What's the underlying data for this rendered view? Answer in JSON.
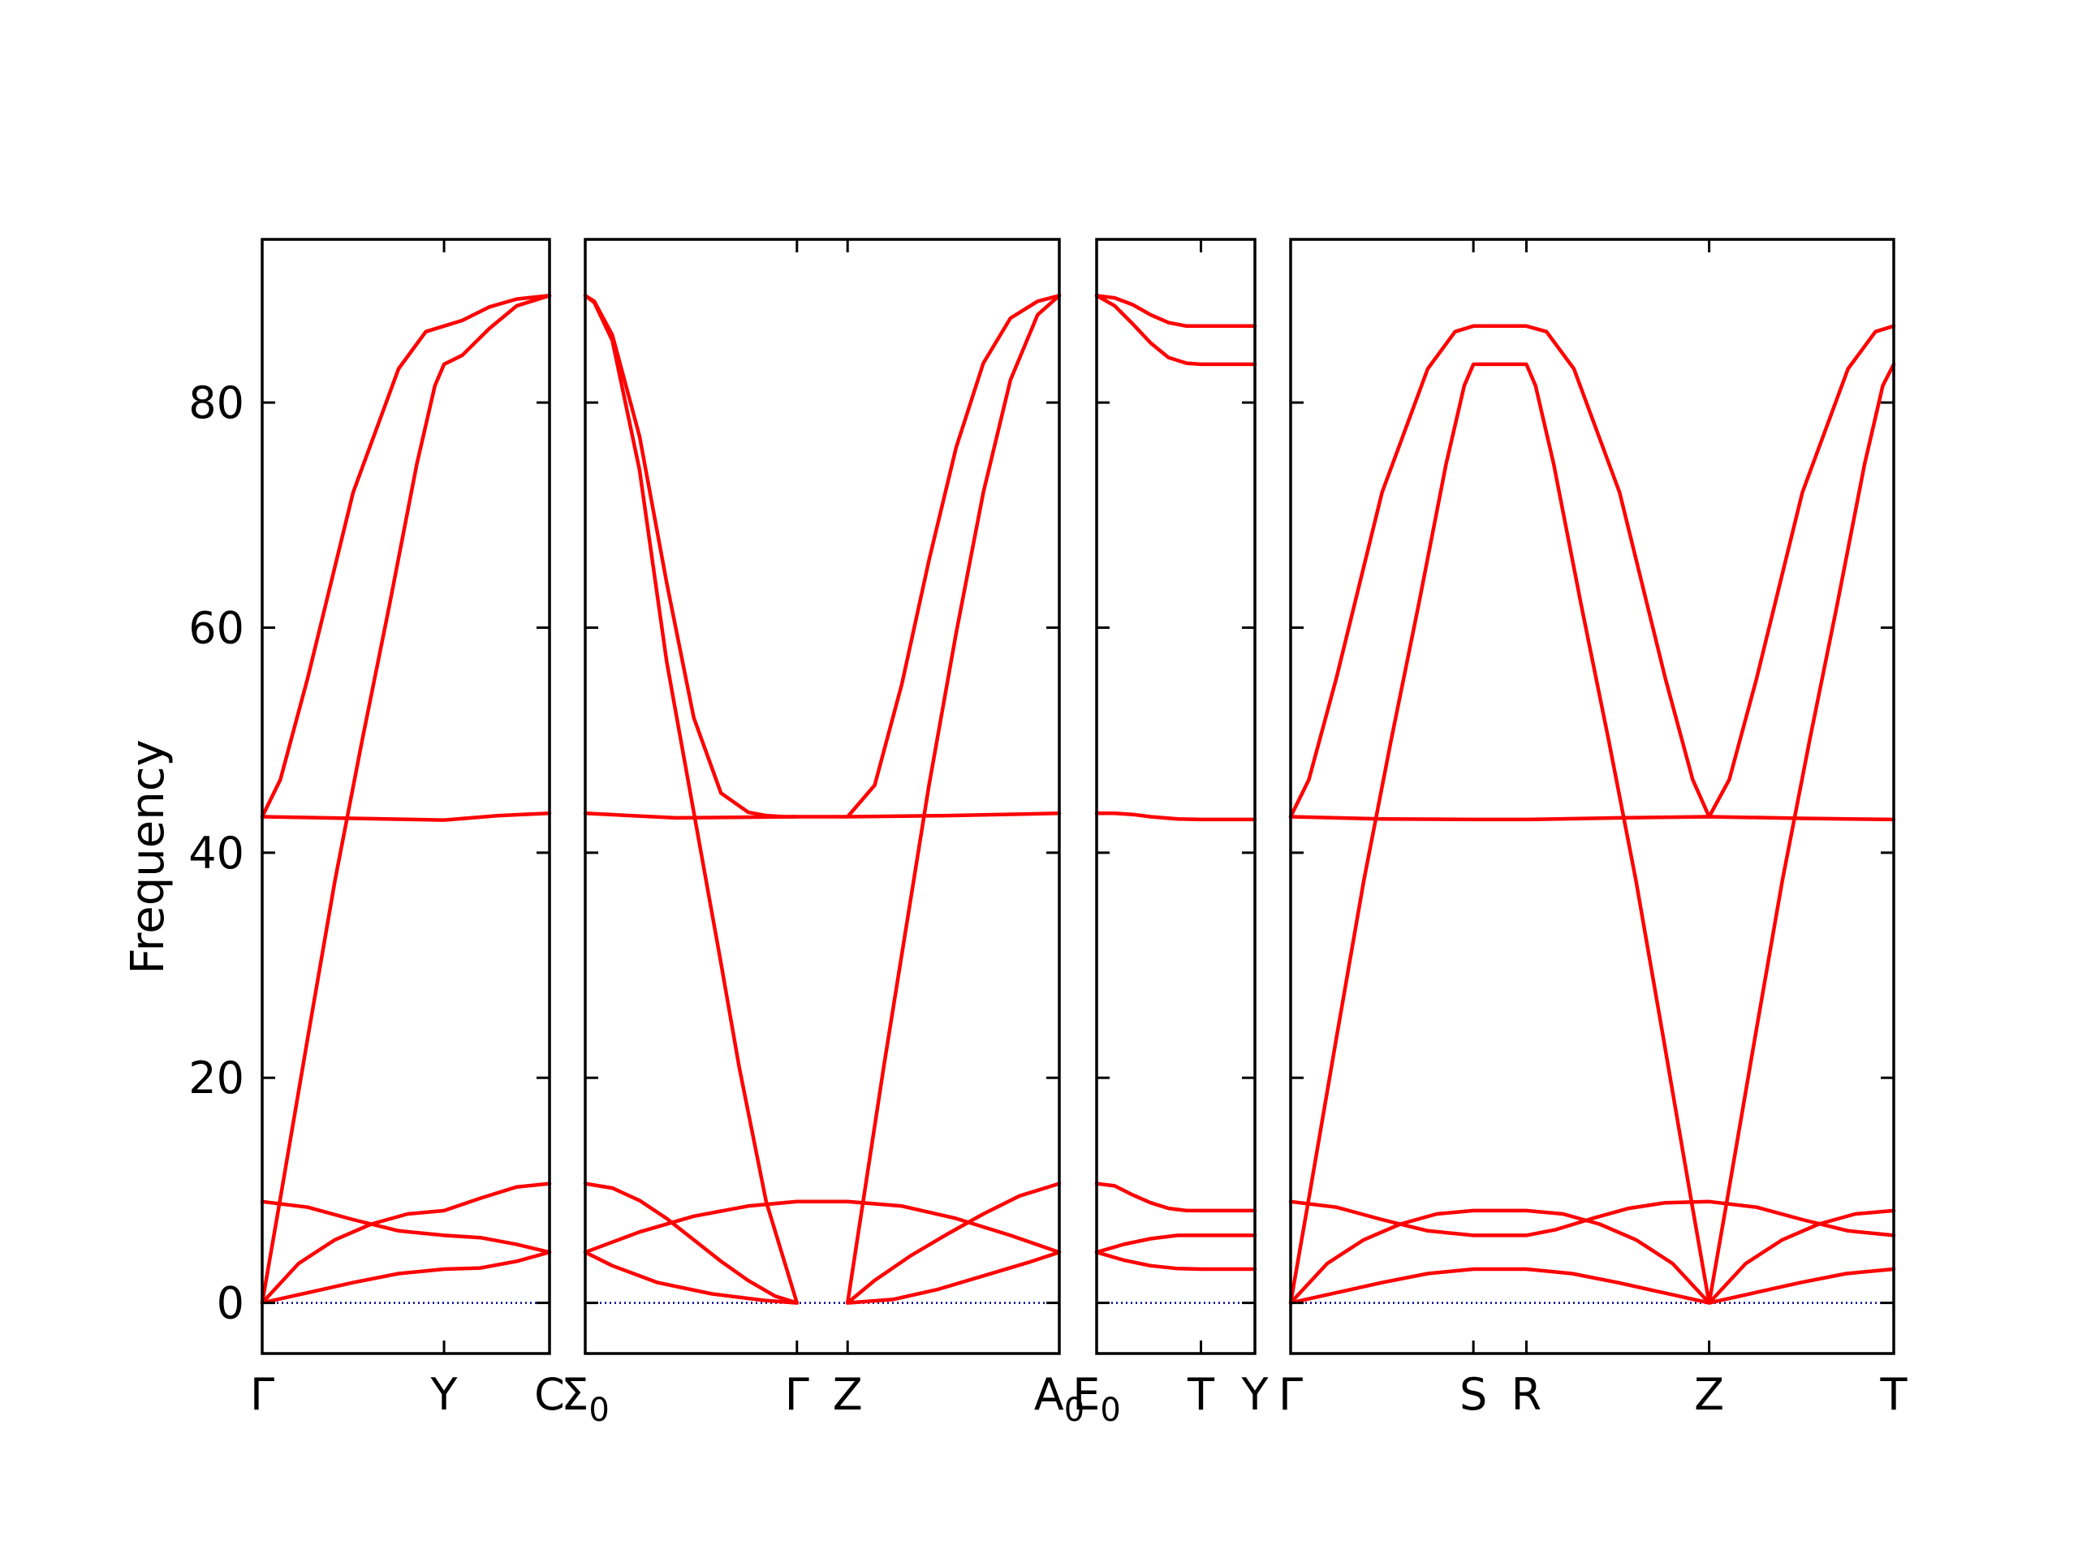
{
  "chart_data": {
    "type": "line",
    "ylabel": "Frequency",
    "ylim": [
      -4.5,
      94.5
    ],
    "yticks": [
      0,
      20,
      40,
      60,
      80
    ],
    "zero_line": true,
    "colors": {
      "bands": "#ff0000",
      "zero_line": "#00008b",
      "axes": "#000000"
    },
    "panels": [
      {
        "id": "p1",
        "xlim": [
          0,
          1.58
        ],
        "ticks": [
          {
            "x": 0,
            "label": "Γ"
          },
          {
            "x": 1.0,
            "label": "Y"
          },
          {
            "x": 1.58,
            "label": "C"
          }
        ],
        "bands": [
          {
            "name": "",
            "x": [
              0,
              0.1,
              0.25,
              0.5,
              0.75,
              0.9,
              1.0,
              1.1,
              1.25,
              1.4,
              1.58
            ],
            "y": [
              43.2,
              46.5,
              55.5,
              72,
              83,
              86.3,
              86.8,
              87.3,
              88.5,
              89.2,
              89.5
            ]
          },
          {
            "name": "",
            "x": [
              0,
              0.1,
              0.25,
              0.4,
              0.55,
              0.7,
              0.85,
              0.95,
              1.0,
              1.1,
              1.25,
              1.4,
              1.58
            ],
            "y": [
              0,
              9.3,
              23.5,
              37.5,
              50,
              62,
              74.5,
              81.5,
              83.4,
              84.2,
              86.6,
              88.6,
              89.5
            ]
          },
          {
            "name": "",
            "x": [
              0,
              0.5,
              1.0,
              1.3,
              1.58
            ],
            "y": [
              43.2,
              43.05,
              42.9,
              43.3,
              43.5
            ]
          },
          {
            "name": "",
            "x": [
              0,
              0.25,
              0.5,
              0.75,
              1.0,
              1.2,
              1.4,
              1.58
            ],
            "y": [
              9.0,
              8.5,
              7.4,
              6.4,
              6.0,
              5.8,
              5.2,
              4.5
            ]
          },
          {
            "name": "",
            "x": [
              0,
              0.2,
              0.4,
              0.6,
              0.8,
              1.0,
              1.2,
              1.4,
              1.58
            ],
            "y": [
              0,
              3.5,
              5.6,
              7.0,
              7.9,
              8.2,
              9.3,
              10.3,
              10.6
            ]
          },
          {
            "name": "",
            "x": [
              0,
              0.25,
              0.5,
              0.75,
              1.0,
              1.2,
              1.4,
              1.58
            ],
            "y": [
              0,
              0.9,
              1.8,
              2.6,
              3.0,
              3.1,
              3.7,
              4.5
            ]
          }
        ]
      },
      {
        "id": "p2",
        "xlim": [
          0,
          2.62
        ],
        "ticks": [
          {
            "x": 0,
            "label": "Σ",
            "sub": "0"
          },
          {
            "x": 1.17,
            "label": "Γ"
          },
          {
            "x": 1.45,
            "label": "Z"
          },
          {
            "x": 2.62,
            "label": "A",
            "sub": "0"
          }
        ],
        "bands": [
          {
            "name": "",
            "x": [
              0,
              0.05,
              0.15,
              0.3,
              0.45,
              0.6,
              0.75,
              0.9,
              1.0,
              1.1,
              1.17
            ],
            "y": [
              89.5,
              89.0,
              86,
              77,
              64,
              52,
              45.3,
              43.6,
              43.3,
              43.2,
              43.2
            ]
          },
          {
            "name": "",
            "x": [
              0,
              0.05,
              0.15,
              0.3,
              0.45,
              0.6,
              0.75,
              0.85,
              1.0,
              1.17
            ],
            "y": [
              89.5,
              88.9,
              85.5,
              74,
              57,
              43.6,
              30.2,
              21.0,
              9.0,
              0
            ]
          },
          {
            "name": "",
            "x": [
              0,
              0.5,
              1.17,
              1.45,
              2.0,
              2.62
            ],
            "y": [
              43.5,
              43.1,
              43.2,
              43.2,
              43.3,
              43.5
            ]
          },
          {
            "name": "",
            "x": [
              0,
              0.15,
              0.4,
              0.7,
              1.0,
              1.17
            ],
            "y": [
              4.5,
              3.3,
              1.8,
              0.8,
              0.2,
              0
            ]
          },
          {
            "name": "",
            "x": [
              0,
              0.15,
              0.3,
              0.45,
              0.6,
              0.75,
              0.9,
              1.05,
              1.17
            ],
            "y": [
              10.6,
              10.2,
              9.1,
              7.5,
              5.6,
              3.7,
              2.0,
              0.6,
              0
            ]
          },
          {
            "name": "",
            "x": [
              0,
              0.3,
              0.6,
              0.9,
              1.17,
              1.45,
              1.75,
              2.05,
              2.35,
              2.62
            ],
            "y": [
              4.5,
              6.3,
              7.7,
              8.6,
              9.0,
              9.0,
              8.6,
              7.5,
              6.0,
              4.5
            ]
          },
          {
            "name": "",
            "x": [
              1.45,
              1.6,
              1.75,
              1.9,
              2.05,
              2.2,
              2.35,
              2.5,
              2.62
            ],
            "y": [
              43.2,
              46,
              55,
              66,
              76,
              83.5,
              87.5,
              89.0,
              89.5
            ]
          },
          {
            "name": "",
            "x": [
              1.45,
              1.65,
              1.9,
              2.05,
              2.2,
              2.35,
              2.5,
              2.62
            ],
            "y": [
              0,
              21.0,
              46,
              59.5,
              72,
              82,
              87.8,
              89.5
            ]
          },
          {
            "name": "",
            "x": [
              1.45,
              1.6,
              1.8,
              2.0,
              2.2,
              2.4,
              2.62
            ],
            "y": [
              0,
              2.0,
              4.2,
              6.1,
              7.9,
              9.5,
              10.6
            ]
          },
          {
            "name": "",
            "x": [
              1.45,
              1.7,
              1.95,
              2.2,
              2.45,
              2.62
            ],
            "y": [
              0,
              0.3,
              1.2,
              2.4,
              3.6,
              4.5
            ]
          }
        ]
      },
      {
        "id": "p3",
        "xlim": [
          0,
          0.88
        ],
        "ticks": [
          {
            "x": 0,
            "label": "E",
            "sub": "0"
          },
          {
            "x": 0.58,
            "label": "T"
          },
          {
            "x": 0.88,
            "label": "Y"
          }
        ],
        "bands": [
          {
            "name": "",
            "x": [
              0,
              0.1,
              0.2,
              0.3,
              0.4,
              0.5,
              0.58,
              0.88
            ],
            "y": [
              89.5,
              89.3,
              88.7,
              87.8,
              87.1,
              86.8,
              86.8,
              86.8
            ]
          },
          {
            "name": "",
            "x": [
              0,
              0.1,
              0.2,
              0.3,
              0.4,
              0.5,
              0.58,
              0.88
            ],
            "y": [
              89.5,
              88.6,
              87.0,
              85.3,
              84.0,
              83.5,
              83.4,
              83.4
            ]
          },
          {
            "name": "",
            "x": [
              0,
              0.1,
              0.2,
              0.3,
              0.45,
              0.58,
              0.88
            ],
            "y": [
              43.5,
              43.5,
              43.4,
              43.2,
              43.0,
              42.95,
              42.95
            ]
          },
          {
            "name": "",
            "x": [
              0,
              0.1,
              0.2,
              0.3,
              0.4,
              0.5,
              0.58,
              0.88
            ],
            "y": [
              10.6,
              10.4,
              9.6,
              8.9,
              8.4,
              8.2,
              8.2,
              8.2
            ]
          },
          {
            "name": "",
            "x": [
              0,
              0.15,
              0.3,
              0.45,
              0.58,
              0.88
            ],
            "y": [
              4.5,
              5.2,
              5.7,
              6.0,
              6.0,
              6.0
            ]
          },
          {
            "name": "",
            "x": [
              0,
              0.15,
              0.3,
              0.45,
              0.58,
              0.88
            ],
            "y": [
              4.5,
              3.8,
              3.3,
              3.05,
              3.0,
              3.0
            ]
          }
        ]
      },
      {
        "id": "p4",
        "xlim": [
          0,
          3.3
        ],
        "ticks": [
          {
            "x": 0,
            "label": "Γ"
          },
          {
            "x": 1.0,
            "label": "S"
          },
          {
            "x": 1.29,
            "label": "R"
          },
          {
            "x": 2.29,
            "label": "Z"
          },
          {
            "x": 3.3,
            "label": "T"
          }
        ],
        "bands": [
          {
            "name": "",
            "x": [
              0,
              0.1,
              0.25,
              0.5,
              0.75,
              0.9,
              1.0,
              1.29,
              1.4,
              1.55,
              1.8,
              2.05,
              2.2,
              2.29,
              2.4,
              2.55,
              2.8,
              3.05,
              3.2,
              3.3
            ],
            "y": [
              43.2,
              46.5,
              55.5,
              72,
              83,
              86.3,
              86.8,
              86.8,
              86.3,
              83,
              72,
              55.5,
              46.5,
              43.2,
              46.5,
              55.5,
              72,
              83,
              86.3,
              86.8
            ]
          },
          {
            "name": "",
            "x": [
              0,
              0.1,
              0.25,
              0.4,
              0.55,
              0.7,
              0.85,
              0.95,
              1.0,
              1.29,
              1.34,
              1.44,
              1.59,
              1.74,
              1.89,
              2.04,
              2.19,
              2.29,
              2.39,
              2.54,
              2.69,
              2.84,
              2.99,
              3.14,
              3.24,
              3.3
            ],
            "y": [
              0,
              9.3,
              23.5,
              37.5,
              50,
              62,
              74.5,
              81.5,
              83.4,
              83.4,
              81.5,
              74.5,
              62,
              50,
              37.5,
              23.5,
              9.3,
              0,
              9.3,
              23.5,
              37.5,
              50,
              62,
              74.5,
              81.5,
              83.4
            ]
          },
          {
            "name": "",
            "x": [
              0,
              0.5,
              1.0,
              1.29,
              1.8,
              2.29,
              2.8,
              3.3
            ],
            "y": [
              43.2,
              43.0,
              42.95,
              42.95,
              43.1,
              43.2,
              43.05,
              42.95
            ]
          },
          {
            "name": "",
            "x": [
              0,
              0.25,
              0.5,
              0.75,
              1.0,
              1.29,
              1.45,
              1.65,
              1.85,
              2.05,
              2.29,
              2.55,
              2.8,
              3.05,
              3.3
            ],
            "y": [
              9.0,
              8.5,
              7.4,
              6.4,
              6.0,
              6.0,
              6.5,
              7.5,
              8.4,
              8.9,
              9.0,
              8.5,
              7.4,
              6.4,
              6.0
            ]
          },
          {
            "name": "",
            "x": [
              0,
              0.2,
              0.4,
              0.6,
              0.8,
              1.0,
              1.29,
              1.49,
              1.69,
              1.89,
              2.09,
              2.29,
              2.49,
              2.69,
              2.89,
              3.09,
              3.3
            ],
            "y": [
              0,
              3.5,
              5.6,
              7.0,
              7.9,
              8.2,
              8.2,
              7.9,
              7.0,
              5.6,
              3.5,
              0,
              3.5,
              5.6,
              7.0,
              7.9,
              8.2
            ]
          },
          {
            "name": "",
            "x": [
              0,
              0.25,
              0.5,
              0.75,
              1.0,
              1.29,
              1.54,
              1.79,
              2.04,
              2.29,
              2.54,
              2.79,
              3.04,
              3.3
            ],
            "y": [
              0,
              0.9,
              1.8,
              2.6,
              3.0,
              3.0,
              2.6,
              1.8,
              0.9,
              0,
              0.9,
              1.8,
              2.6,
              3.0
            ]
          }
        ]
      }
    ]
  }
}
